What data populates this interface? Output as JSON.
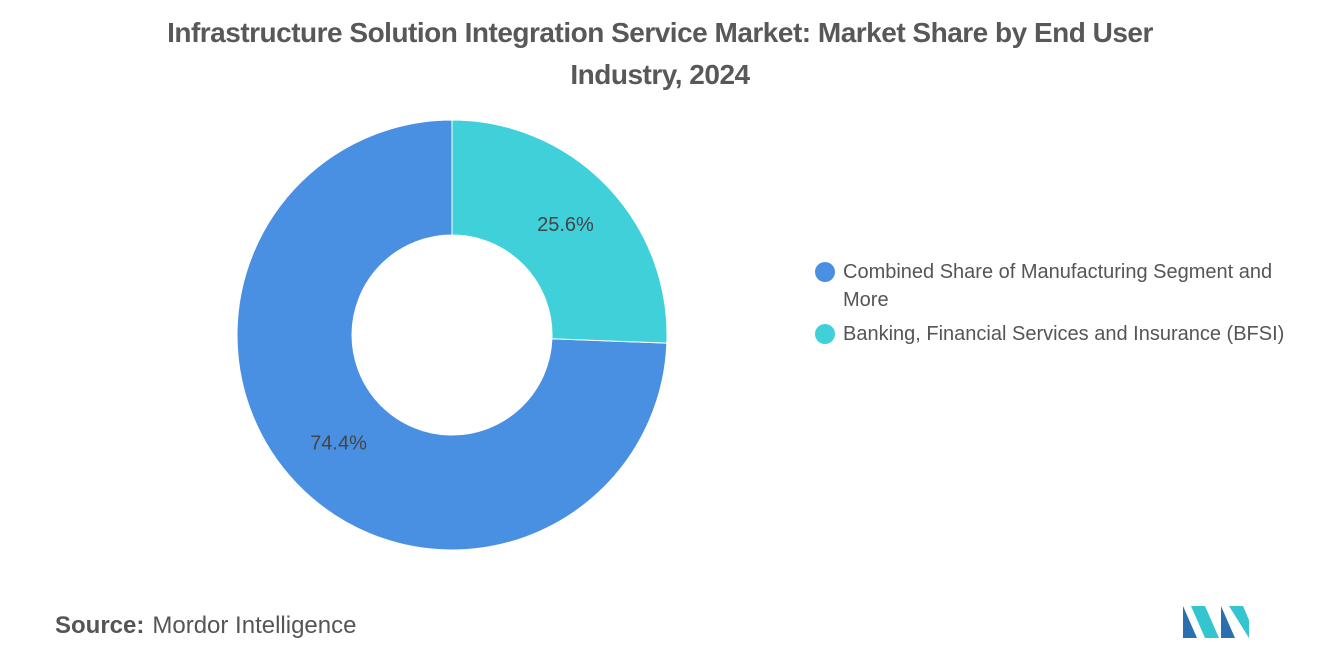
{
  "chart_data": {
    "type": "pie",
    "donut": true,
    "title": "Infrastructure Solution Integration Service Market: Market Share by End User Industry, 2024",
    "categories": [
      "Combined Share of Manufacturing Segment and More",
      "Banking, Financial Services and Insurance (BFSI)"
    ],
    "values": [
      74.4,
      25.6
    ],
    "value_labels": [
      "74.4%",
      "25.6%"
    ],
    "colors": [
      "#4a90e2",
      "#3fd0da"
    ],
    "legend": "right"
  },
  "source": {
    "label": "Source:",
    "text": "Mordor Intelligence"
  }
}
